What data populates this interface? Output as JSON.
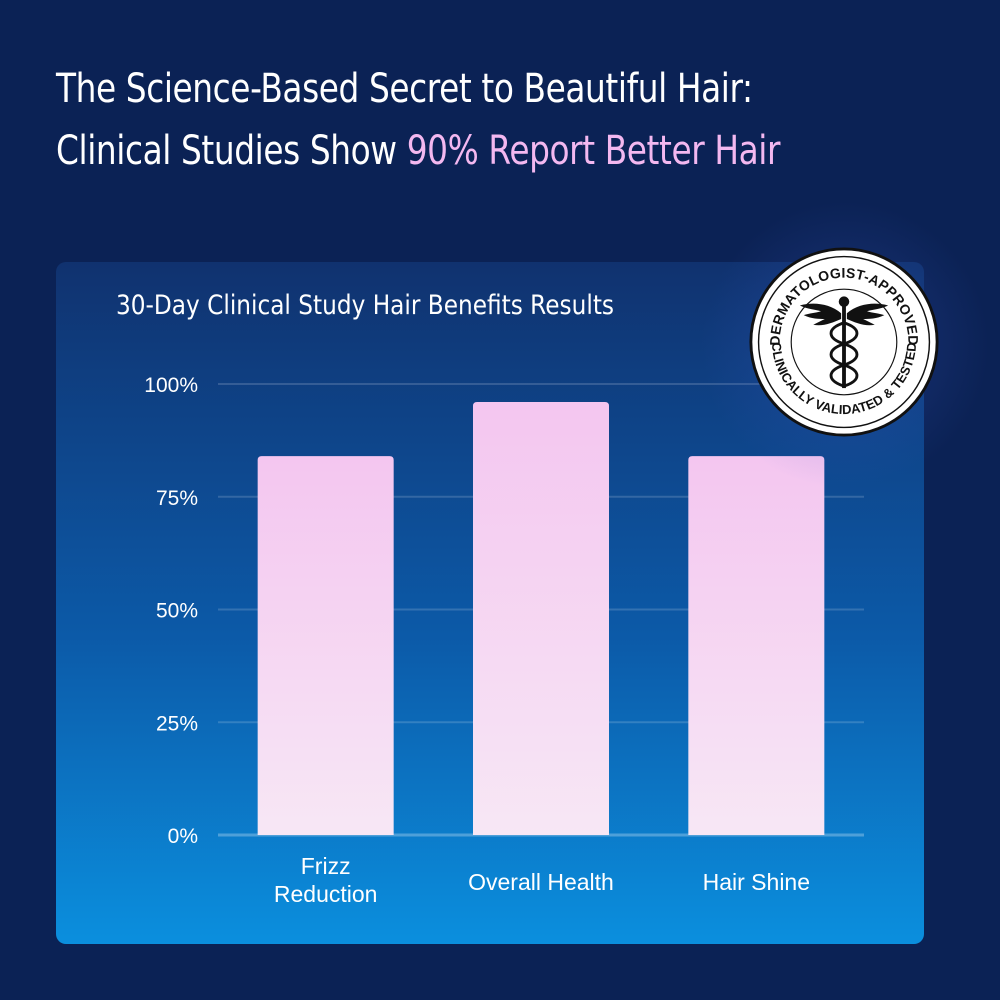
{
  "headline": {
    "line1": "The Science-Based Secret to Beautiful Hair:",
    "line2_prefix": "Clinical Studies Show ",
    "line2_accent": "90% Report Better Hair"
  },
  "colors": {
    "background": "#0b2255",
    "accent_text": "#f3b8f0",
    "bar_top": "#f4c6f0",
    "bar_bottom": "#f7e7f5"
  },
  "badge": {
    "top_text": "DERMATOLOGIST-APPROVED",
    "bottom_text": "CLINICALLY VALIDATED & TESTED",
    "icon": "caduceus-icon"
  },
  "chart_data": {
    "type": "bar",
    "title": "30-Day Clinical Study Hair Benefits Results",
    "categories": [
      [
        "Frizz",
        "Reduction"
      ],
      [
        "Overall Health"
      ],
      [
        "Hair Shine"
      ]
    ],
    "values": [
      84,
      96,
      84
    ],
    "ylim": [
      0,
      100
    ],
    "yticks": [
      0,
      25,
      50,
      75,
      100
    ],
    "ytick_labels": [
      "0%",
      "25%",
      "50%",
      "75%",
      "100%"
    ],
    "grid": true,
    "xlabel": "",
    "ylabel": ""
  }
}
